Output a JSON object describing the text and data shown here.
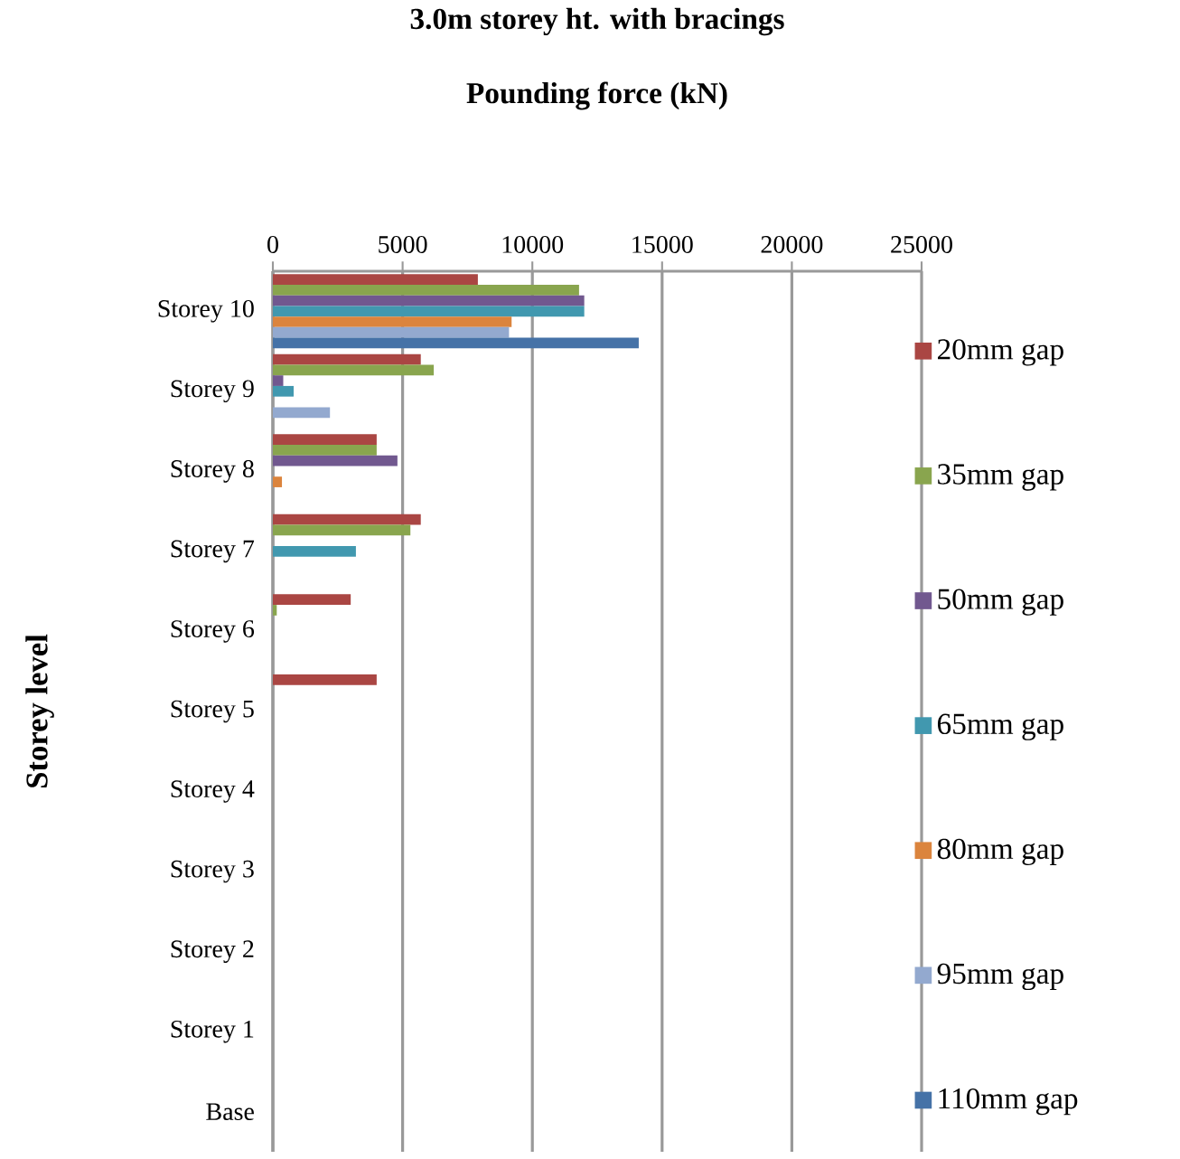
{
  "chart_data": {
    "type": "bar",
    "orientation": "horizontal",
    "title": "3.0m storey ht. with bracings",
    "xlabel": "Pounding force (kN)",
    "ylabel": "Storey level",
    "categories": [
      "Storey 10",
      "Storey 9",
      "Storey 8",
      "Storey 7",
      "Storey 6",
      "Storey 5",
      "Storey 4",
      "Storey 3",
      "Storey 2",
      "Storey 1",
      "Base"
    ],
    "series": [
      {
        "name": "20mm gap",
        "color": "#aa4643",
        "values": [
          7900,
          5700,
          4000,
          5700,
          3000,
          4000,
          null,
          null,
          null,
          null,
          null
        ]
      },
      {
        "name": "35mm gap",
        "color": "#89a54e",
        "values": [
          11800,
          6200,
          4000,
          5300,
          150,
          null,
          null,
          null,
          null,
          null,
          null
        ]
      },
      {
        "name": "50mm gap",
        "color": "#71588f",
        "values": [
          12000,
          400,
          4800,
          null,
          null,
          null,
          null,
          null,
          null,
          null,
          null
        ]
      },
      {
        "name": "65mm gap",
        "color": "#4198af",
        "values": [
          12000,
          800,
          null,
          3200,
          null,
          null,
          null,
          null,
          null,
          null,
          null
        ]
      },
      {
        "name": "80mm gap",
        "color": "#db843d",
        "values": [
          9200,
          null,
          350,
          null,
          null,
          null,
          null,
          null,
          null,
          null,
          null
        ]
      },
      {
        "name": "95mm gap",
        "color": "#93a9cf",
        "values": [
          9100,
          2200,
          null,
          null,
          null,
          null,
          null,
          null,
          null,
          null,
          null
        ]
      },
      {
        "name": "110mm gap",
        "color": "#4572a7",
        "values": [
          14100,
          null,
          null,
          null,
          null,
          null,
          null,
          null,
          null,
          null,
          null
        ]
      }
    ],
    "xlim": [
      0,
      25000
    ],
    "xticks": [
      0,
      5000,
      10000,
      15000,
      20000,
      25000
    ],
    "grid": "x",
    "legend": "right"
  }
}
